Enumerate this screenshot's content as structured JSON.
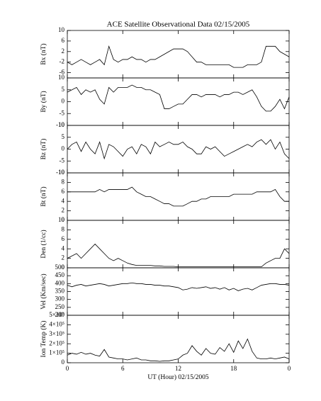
{
  "chart_data": [
    {
      "type": "line",
      "title": "ACE Satellite Observational Data   02/15/2005",
      "ylabel": "Bx (nT)",
      "color": "#000000",
      "xlim": [
        0,
        24
      ],
      "ylim": [
        -8,
        10
      ],
      "yticks": [
        10,
        6,
        2,
        -2,
        -6
      ],
      "x": [
        0,
        0.5,
        1,
        1.5,
        2,
        2.5,
        3,
        3.5,
        4,
        4.5,
        5,
        5.5,
        6,
        6.5,
        7,
        7.5,
        8,
        8.5,
        9,
        9.5,
        10,
        10.5,
        11,
        11.5,
        12,
        12.5,
        13,
        13.5,
        14,
        14.5,
        15,
        15.5,
        16,
        16.5,
        17,
        17.5,
        18,
        18.5,
        19,
        19.5,
        20,
        20.5,
        21,
        21.5,
        22,
        22.5,
        23,
        23.5,
        24
      ],
      "values": [
        -2,
        -3,
        -2,
        -1,
        -2,
        -3,
        -2,
        -1,
        -3,
        4,
        -1,
        -2,
        -1,
        -1,
        0,
        -1,
        -1,
        -2,
        -1,
        -1,
        0,
        1,
        2,
        3,
        3,
        3,
        2,
        0,
        -2,
        -2,
        -3,
        -3,
        -3,
        -3,
        -3,
        -3,
        -4,
        -4,
        -4,
        -3,
        -3,
        -3,
        -2,
        4,
        4,
        4,
        2,
        1,
        0
      ]
    },
    {
      "type": "line",
      "ylabel": "By (nT)",
      "color": "#000000",
      "xlim": [
        0,
        24
      ],
      "ylim": [
        -10,
        10
      ],
      "yticks": [
        10,
        5,
        0,
        -5,
        -10
      ],
      "x": [
        0,
        0.5,
        1,
        1.5,
        2,
        2.5,
        3,
        3.5,
        4,
        4.5,
        5,
        5.5,
        6,
        6.5,
        7,
        7.5,
        8,
        8.5,
        9,
        9.5,
        10,
        10.5,
        11,
        11.5,
        12,
        12.5,
        13,
        13.5,
        14,
        14.5,
        15,
        15.5,
        16,
        16.5,
        17,
        17.5,
        18,
        18.5,
        19,
        19.5,
        20,
        20.5,
        21,
        21.5,
        22,
        22.5,
        23,
        23.5,
        24
      ],
      "values": [
        4,
        5,
        6,
        3,
        5,
        4,
        5,
        1,
        -1,
        6,
        4,
        6,
        6,
        6,
        7,
        6,
        6,
        5,
        5,
        4,
        3,
        -3,
        -3,
        -2,
        -1,
        -1,
        1,
        3,
        3,
        2,
        3,
        3,
        3,
        2,
        3,
        3,
        4,
        4,
        3,
        4,
        5,
        2,
        -2,
        -4,
        -4,
        -2,
        1,
        -3,
        2
      ]
    },
    {
      "type": "line",
      "ylabel": "Bz (nT)",
      "color": "#000000",
      "xlim": [
        0,
        24
      ],
      "ylim": [
        -10,
        10
      ],
      "yticks": [
        10,
        5,
        0,
        -5,
        -10
      ],
      "x": [
        0,
        0.5,
        1,
        1.5,
        2,
        2.5,
        3,
        3.5,
        4,
        4.5,
        5,
        5.5,
        6,
        6.5,
        7,
        7.5,
        8,
        8.5,
        9,
        9.5,
        10,
        10.5,
        11,
        11.5,
        12,
        12.5,
        13,
        13.5,
        14,
        14.5,
        15,
        15.5,
        16,
        16.5,
        17,
        17.5,
        18,
        18.5,
        19,
        19.5,
        20,
        20.5,
        21,
        21.5,
        22,
        22.5,
        23,
        23.5,
        24
      ],
      "values": [
        0,
        2,
        3,
        -1,
        3,
        0,
        -2,
        3,
        -4,
        2,
        1,
        -1,
        -3,
        0,
        1,
        -2,
        2,
        1,
        -2,
        3,
        1,
        2,
        3,
        2,
        2,
        3,
        1,
        0,
        -2,
        -2,
        1,
        0,
        1,
        -1,
        -3,
        -2,
        -1,
        0,
        1,
        2,
        1,
        3,
        4,
        2,
        4,
        0,
        3,
        -2,
        -4
      ]
    },
    {
      "type": "line",
      "ylabel": "Bt (nT)",
      "color": "#000000",
      "xlim": [
        0,
        24
      ],
      "ylim": [
        0,
        10
      ],
      "yticks": [
        10,
        8,
        6,
        4,
        2,
        0
      ],
      "x": [
        0,
        0.5,
        1,
        1.5,
        2,
        2.5,
        3,
        3.5,
        4,
        4.5,
        5,
        5.5,
        6,
        6.5,
        7,
        7.5,
        8,
        8.5,
        9,
        9.5,
        10,
        10.5,
        11,
        11.5,
        12,
        12.5,
        13,
        13.5,
        14,
        14.5,
        15,
        15.5,
        16,
        16.5,
        17,
        17.5,
        18,
        18.5,
        19,
        19.5,
        20,
        20.5,
        21,
        21.5,
        22,
        22.5,
        23,
        23.5,
        24
      ],
      "values": [
        6,
        6,
        6,
        6,
        6,
        6,
        6,
        6.5,
        6,
        6.5,
        6.5,
        6.5,
        6.5,
        6.5,
        7,
        6,
        5.5,
        5,
        5,
        4.5,
        4,
        3.5,
        3.5,
        3,
        3,
        3,
        3.5,
        4,
        4,
        4.5,
        4.5,
        5,
        5,
        5,
        5,
        5,
        5.5,
        5.5,
        5.5,
        5.5,
        5.5,
        6,
        6,
        6,
        6,
        6.5,
        5,
        4,
        4
      ]
    },
    {
      "type": "line",
      "ylabel": "Den (1/cc)",
      "color": "#000000",
      "xlim": [
        0,
        24
      ],
      "ylim": [
        0,
        10
      ],
      "yticks": [
        10,
        8,
        6,
        4,
        2,
        0
      ],
      "x": [
        0,
        0.5,
        1,
        1.5,
        2,
        2.5,
        3,
        3.5,
        4,
        4.5,
        5,
        5.5,
        6,
        6.5,
        7,
        7.5,
        8,
        8.5,
        9,
        9.5,
        10,
        10.5,
        11,
        11.5,
        12,
        12.5,
        13,
        13.5,
        14,
        14.5,
        15,
        15.5,
        16,
        16.5,
        17,
        17.5,
        18,
        18.5,
        19,
        19.5,
        20,
        20.5,
        21,
        21.5,
        22,
        22.5,
        23,
        23.5,
        24
      ],
      "values": [
        2,
        2.5,
        3,
        2,
        3,
        4,
        5,
        4,
        3,
        2,
        1.5,
        2,
        1.5,
        1,
        0.7,
        0.5,
        0.5,
        0.5,
        0.5,
        0.4,
        0.4,
        0.3,
        0.3,
        0.3,
        0.2,
        0.2,
        0.2,
        0.2,
        0.2,
        0.2,
        0.2,
        0.2,
        0.2,
        0.2,
        0.2,
        0.2,
        0.2,
        0.2,
        0.2,
        0.2,
        0.2,
        0.2,
        0.2,
        1,
        1.5,
        2,
        2,
        4,
        3
      ]
    },
    {
      "type": "line",
      "ylabel": "Vel (Km/sec)",
      "color": "#000000",
      "xlim": [
        0,
        24
      ],
      "ylim": [
        200,
        500
      ],
      "yticks": [
        500,
        450,
        400,
        350,
        300,
        250,
        200
      ],
      "x": [
        0,
        0.5,
        1,
        1.5,
        2,
        2.5,
        3,
        3.5,
        4,
        4.5,
        5,
        5.5,
        6,
        6.5,
        7,
        7.5,
        8,
        8.5,
        9,
        9.5,
        10,
        10.5,
        11,
        11.5,
        12,
        12.5,
        13,
        13.5,
        14,
        14.5,
        15,
        15.5,
        16,
        16.5,
        17,
        17.5,
        18,
        18.5,
        19,
        19.5,
        20,
        20.5,
        21,
        21.5,
        22,
        22.5,
        23,
        23.5,
        24
      ],
      "values": [
        390,
        380,
        390,
        395,
        385,
        390,
        395,
        400,
        395,
        385,
        390,
        395,
        400,
        400,
        405,
        400,
        400,
        395,
        395,
        390,
        390,
        385,
        385,
        380,
        375,
        360,
        365,
        375,
        370,
        375,
        380,
        370,
        375,
        365,
        375,
        360,
        370,
        355,
        365,
        370,
        360,
        375,
        390,
        395,
        400,
        400,
        395,
        395,
        390
      ]
    },
    {
      "type": "line",
      "ylabel": "Ion Temp (K)",
      "xlabel": "UT (Hour)   02/15/2005",
      "color": "#000000",
      "xlim": [
        0,
        24
      ],
      "ylim": [
        0,
        500000
      ],
      "yticks": [
        {
          "value": 500000,
          "label": "5×10⁵"
        },
        {
          "value": 400000,
          "label": "4×10⁵"
        },
        {
          "value": 300000,
          "label": "3×10⁵"
        },
        {
          "value": 200000,
          "label": "2×10⁵"
        },
        {
          "value": 100000,
          "label": "1×10⁵"
        },
        0
      ],
      "xticks": [
        0,
        6,
        12,
        18,
        {
          "value": 24,
          "label": "0"
        }
      ],
      "x": [
        0,
        0.5,
        1,
        1.5,
        2,
        2.5,
        3,
        3.5,
        4,
        4.5,
        5,
        5.5,
        6,
        6.5,
        7,
        7.5,
        8,
        8.5,
        9,
        9.5,
        10,
        10.5,
        11,
        11.5,
        12,
        12.5,
        13,
        13.5,
        14,
        14.5,
        15,
        15.5,
        16,
        16.5,
        17,
        17.5,
        18,
        18.5,
        19,
        19.5,
        20,
        20.5,
        21,
        21.5,
        22,
        22.5,
        23,
        23.5,
        24
      ],
      "values": [
        80000,
        100000,
        90000,
        110000,
        90000,
        100000,
        80000,
        70000,
        140000,
        60000,
        50000,
        40000,
        40000,
        30000,
        40000,
        50000,
        30000,
        30000,
        20000,
        20000,
        15000,
        20000,
        20000,
        30000,
        40000,
        80000,
        100000,
        180000,
        120000,
        80000,
        150000,
        100000,
        90000,
        160000,
        120000,
        200000,
        110000,
        230000,
        150000,
        250000,
        120000,
        50000,
        40000,
        40000,
        50000,
        40000,
        50000,
        60000,
        40000
      ]
    }
  ]
}
